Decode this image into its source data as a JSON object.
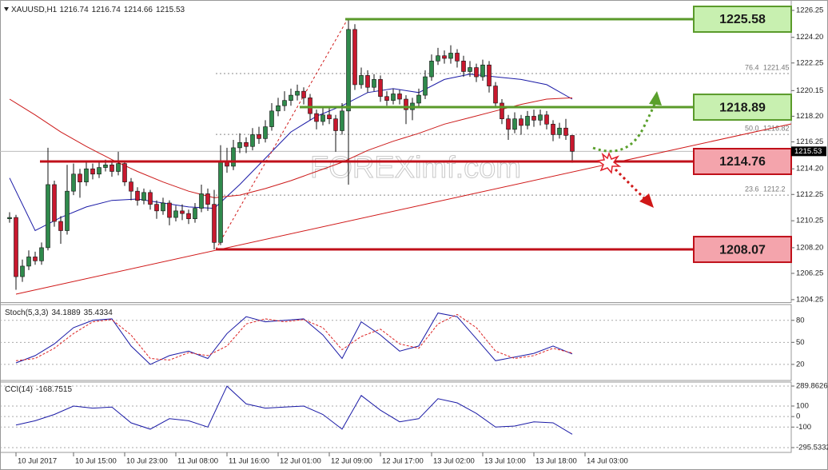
{
  "chart_data": [
    {
      "type": "candlestick",
      "title": "XAUUSD,H1",
      "header_values": [
        1216.74,
        1216.74,
        1214.66,
        1215.53
      ],
      "xlim": [
        -1.5,
        122.25
      ],
      "ylim": [
        1204.06,
        1227.04
      ],
      "yticks": [
        1226.25,
        {
          "value": 1224.2,
          "label": "1224.20"
        },
        1222.25,
        1220.15,
        {
          "value": 1218.2,
          "label": "1218.20"
        },
        1216.25,
        {
          "value": 1214.2,
          "label": "1214.20"
        },
        1212.25,
        1210.25,
        {
          "value": 1208.2,
          "label": "1208.20"
        },
        1206.25,
        1204.25
      ],
      "xticks": [
        {
          "value": 1,
          "label": "10 Jul 2017"
        },
        {
          "value": 10,
          "label": "10 Jul 15:00"
        },
        {
          "value": 18,
          "label": "10 Jul 23:00"
        },
        {
          "value": 26,
          "label": "11 Jul 08:00"
        },
        {
          "value": 34,
          "label": "11 Jul 16:00"
        },
        {
          "value": 42,
          "label": "12 Jul 01:00"
        },
        {
          "value": 50,
          "label": "12 Jul 09:00"
        },
        {
          "value": 58,
          "label": "12 Jul 17:00"
        },
        {
          "value": 66,
          "label": "13 Jul 02:00"
        },
        {
          "value": 74,
          "label": "13 Jul 10:00"
        },
        {
          "value": 82,
          "label": "13 Jul 18:00"
        },
        {
          "value": 90,
          "label": "14 Jul 03:00"
        }
      ],
      "colors": {
        "up": "#2f8a4c",
        "down": "#c8182e",
        "wick": "#111111"
      },
      "ohlc": [
        [
          1210.4,
          1210.9,
          1210.1,
          1210.5
        ],
        [
          1210.5,
          1210.7,
          1205.0,
          1206.0
        ],
        [
          1206.0,
          1207.3,
          1205.6,
          1206.8
        ],
        [
          1206.8,
          1208.0,
          1206.5,
          1207.5
        ],
        [
          1207.5,
          1207.9,
          1206.9,
          1207.2
        ],
        [
          1207.2,
          1208.6,
          1206.9,
          1208.2
        ],
        [
          1208.2,
          1215.8,
          1208.0,
          1213.0
        ],
        [
          1213.0,
          1213.3,
          1209.8,
          1210.2
        ],
        [
          1210.2,
          1210.6,
          1208.5,
          1209.5
        ],
        [
          1209.5,
          1214.5,
          1209.2,
          1212.5
        ],
        [
          1212.5,
          1214.6,
          1212.2,
          1213.8
        ],
        [
          1213.8,
          1214.2,
          1212.0,
          1213.2
        ],
        [
          1213.2,
          1214.8,
          1212.9,
          1214.2
        ],
        [
          1214.2,
          1214.6,
          1213.4,
          1213.8
        ],
        [
          1213.8,
          1214.7,
          1213.5,
          1214.3
        ],
        [
          1214.3,
          1214.9,
          1214.0,
          1214.5
        ],
        [
          1214.5,
          1214.8,
          1213.6,
          1214.0
        ],
        [
          1214.0,
          1215.5,
          1213.7,
          1214.6
        ],
        [
          1214.6,
          1214.8,
          1212.9,
          1213.2
        ],
        [
          1213.2,
          1213.5,
          1211.8,
          1212.5
        ],
        [
          1212.5,
          1212.8,
          1211.4,
          1211.8
        ],
        [
          1211.8,
          1212.7,
          1211.5,
          1212.4
        ],
        [
          1212.4,
          1212.6,
          1211.1,
          1211.5
        ],
        [
          1211.5,
          1211.8,
          1210.4,
          1211.0
        ],
        [
          1211.0,
          1212.0,
          1210.7,
          1211.6
        ],
        [
          1211.6,
          1211.8,
          1209.9,
          1210.5
        ],
        [
          1210.5,
          1211.4,
          1210.2,
          1211.0
        ],
        [
          1211.0,
          1211.5,
          1210.3,
          1210.8
        ],
        [
          1210.8,
          1211.1,
          1210.0,
          1210.4
        ],
        [
          1210.4,
          1211.6,
          1210.1,
          1211.2
        ],
        [
          1211.2,
          1213.0,
          1210.9,
          1212.3
        ],
        [
          1212.3,
          1212.7,
          1211.0,
          1211.5
        ],
        [
          1211.5,
          1212.6,
          1208.07,
          1208.6
        ],
        [
          1208.6,
          1216.0,
          1208.4,
          1214.8
        ],
        [
          1214.8,
          1215.8,
          1213.9,
          1214.4
        ],
        [
          1214.4,
          1216.4,
          1214.1,
          1215.8
        ],
        [
          1215.8,
          1216.9,
          1215.4,
          1216.2
        ],
        [
          1216.2,
          1216.6,
          1215.4,
          1215.9
        ],
        [
          1215.9,
          1217.3,
          1215.6,
          1216.8
        ],
        [
          1216.8,
          1217.4,
          1216.1,
          1216.5
        ],
        [
          1216.5,
          1217.9,
          1216.2,
          1217.4
        ],
        [
          1217.4,
          1219.2,
          1217.1,
          1218.6
        ],
        [
          1218.6,
          1219.6,
          1218.2,
          1219.0
        ],
        [
          1219.0,
          1220.1,
          1218.6,
          1219.4
        ],
        [
          1219.4,
          1220.3,
          1219.0,
          1219.8
        ],
        [
          1219.8,
          1220.6,
          1219.4,
          1220.1
        ],
        [
          1220.1,
          1220.4,
          1219.1,
          1219.6
        ],
        [
          1219.6,
          1219.9,
          1217.9,
          1218.4
        ],
        [
          1218.4,
          1218.7,
          1217.2,
          1217.8
        ],
        [
          1217.8,
          1218.8,
          1217.5,
          1218.3
        ],
        [
          1218.3,
          1218.9,
          1217.6,
          1218.0
        ],
        [
          1218.0,
          1218.3,
          1215.5,
          1217.1
        ],
        [
          1217.1,
          1219.2,
          1216.8,
          1218.6
        ],
        [
          1218.6,
          1225.58,
          1213.0,
          1224.8
        ],
        [
          1224.8,
          1225.2,
          1220.2,
          1220.6
        ],
        [
          1220.6,
          1221.9,
          1220.3,
          1221.3
        ],
        [
          1221.3,
          1221.7,
          1220.0,
          1220.4
        ],
        [
          1220.4,
          1221.4,
          1220.1,
          1221.0
        ],
        [
          1221.0,
          1221.3,
          1219.3,
          1219.7
        ],
        [
          1219.7,
          1220.1,
          1219.0,
          1219.4
        ],
        [
          1219.4,
          1220.3,
          1219.1,
          1219.9
        ],
        [
          1219.9,
          1220.2,
          1219.1,
          1219.5
        ],
        [
          1219.5,
          1219.8,
          1217.6,
          1218.7
        ],
        [
          1218.7,
          1219.6,
          1217.9,
          1219.2
        ],
        [
          1219.2,
          1220.3,
          1218.9,
          1219.8
        ],
        [
          1219.8,
          1221.7,
          1219.5,
          1221.2
        ],
        [
          1221.2,
          1222.9,
          1220.9,
          1222.4
        ],
        [
          1222.4,
          1223.4,
          1222.1,
          1222.8
        ],
        [
          1222.8,
          1223.2,
          1222.2,
          1222.6
        ],
        [
          1222.6,
          1223.6,
          1222.2,
          1223.0
        ],
        [
          1223.0,
          1223.3,
          1221.9,
          1222.4
        ],
        [
          1222.4,
          1222.8,
          1221.2,
          1221.6
        ],
        [
          1221.6,
          1222.4,
          1221.2,
          1221.9
        ],
        [
          1221.9,
          1222.2,
          1220.8,
          1221.2
        ],
        [
          1221.2,
          1222.5,
          1220.9,
          1222.1
        ],
        [
          1222.1,
          1222.4,
          1220.0,
          1220.5
        ],
        [
          1220.5,
          1220.8,
          1218.8,
          1219.2
        ],
        [
          1219.2,
          1219.5,
          1217.6,
          1218.0
        ],
        [
          1218.0,
          1218.3,
          1216.4,
          1217.2
        ],
        [
          1217.2,
          1218.5,
          1216.9,
          1218.0
        ],
        [
          1218.0,
          1218.3,
          1216.8,
          1217.5
        ],
        [
          1217.5,
          1218.6,
          1217.2,
          1218.2
        ],
        [
          1218.2,
          1218.7,
          1217.4,
          1217.9
        ],
        [
          1217.9,
          1218.7,
          1217.5,
          1218.3
        ],
        [
          1218.3,
          1218.6,
          1217.2,
          1217.6
        ],
        [
          1217.6,
          1217.9,
          1216.3,
          1216.8
        ],
        [
          1216.8,
          1217.7,
          1216.5,
          1217.3
        ],
        [
          1217.3,
          1218.0,
          1216.4,
          1216.74
        ],
        [
          1216.74,
          1216.74,
          1214.66,
          1215.53
        ]
      ],
      "moving_averages": [
        {
          "color": "#1a1aa6",
          "x": [
            0,
            4,
            8,
            12,
            16,
            20,
            24,
            28,
            32,
            36,
            40,
            44,
            48,
            52,
            56,
            60,
            64,
            68,
            72,
            76,
            80,
            84,
            88
          ],
          "values": [
            1213.5,
            1209.5,
            1210.5,
            1211.3,
            1211.8,
            1211.9,
            1211.6,
            1211.3,
            1211.2,
            1213.0,
            1215.0,
            1217.0,
            1218.2,
            1219.0,
            1220.0,
            1220.3,
            1220.0,
            1221.0,
            1221.4,
            1221.2,
            1221.0,
            1220.6,
            1219.5
          ]
        },
        {
          "color": "#cc1a1a",
          "x": [
            0,
            4,
            8,
            12,
            16,
            20,
            24,
            28,
            32,
            36,
            40,
            44,
            48,
            52,
            56,
            60,
            64,
            68,
            72,
            76,
            80,
            84,
            88
          ],
          "values": [
            1219.5,
            1218.3,
            1217.0,
            1215.9,
            1214.9,
            1214.0,
            1213.2,
            1212.5,
            1212.0,
            1212.2,
            1212.7,
            1213.3,
            1214.0,
            1214.7,
            1215.6,
            1216.3,
            1216.9,
            1217.6,
            1218.1,
            1218.6,
            1219.1,
            1219.5,
            1219.6
          ]
        }
      ],
      "levels": [
        {
          "value": 1225.58,
          "color": "#5a9a2a",
          "fill": "#c8f0b0"
        },
        {
          "value": 1218.89,
          "color": "#5a9a2a",
          "fill": "#c8f0b0"
        },
        {
          "value": 1214.76,
          "color": "#c0101a",
          "fill": "#f4a4ac"
        },
        {
          "value": 1208.07,
          "color": "#c0101a",
          "fill": "#f4a4ac"
        }
      ],
      "fibonacci": [
        {
          "label": "76.4",
          "value": 1221.45
        },
        {
          "label": "50.0",
          "value": 1216.82
        },
        {
          "label": "23.6",
          "value": 1212.2
        }
      ],
      "current_price": 1215.53,
      "watermark": "FOREXimf.com"
    },
    {
      "type": "line",
      "title": "Stoch(5,3,3)",
      "header_values": [
        34.1889,
        35.4334
      ],
      "xlim": [
        -1.5,
        122.25
      ],
      "ylim": [
        -1.9,
        101.5
      ],
      "yticks": [
        80,
        50,
        20
      ],
      "x": [
        1,
        4,
        7,
        10,
        13,
        16,
        19,
        22,
        25,
        28,
        31,
        34,
        37,
        40,
        43,
        46,
        49,
        52,
        55,
        58,
        61,
        64,
        67,
        70,
        73,
        76,
        79,
        82,
        85,
        88
      ],
      "series": [
        {
          "color": "#1a1aa6",
          "dash": false,
          "values": [
            22,
            32,
            48,
            70,
            80,
            82,
            45,
            20,
            32,
            38,
            28,
            62,
            85,
            78,
            80,
            82,
            60,
            28,
            78,
            60,
            38,
            45,
            90,
            85,
            55,
            25,
            30,
            35,
            45,
            34.1889
          ]
        },
        {
          "color": "#dd2222",
          "dash": true,
          "values": [
            25,
            28,
            42,
            62,
            78,
            81,
            60,
            28,
            26,
            36,
            32,
            45,
            75,
            82,
            78,
            81,
            70,
            40,
            58,
            68,
            48,
            42,
            75,
            88,
            70,
            38,
            28,
            32,
            42,
            35.4334
          ]
        }
      ]
    },
    {
      "type": "line",
      "title": "CCI(14)",
      "header_values": [
        -168.7515
      ],
      "xlim": [
        -1.5,
        122.25
      ],
      "ylim": [
        -341.1,
        327.9
      ],
      "yticks": [
        289.8626,
        100,
        0,
        -100,
        -295.5332
      ],
      "x": [
        1,
        4,
        7,
        10,
        13,
        16,
        19,
        22,
        25,
        28,
        31,
        34,
        37,
        40,
        43,
        46,
        49,
        52,
        55,
        58,
        61,
        64,
        67,
        70,
        73,
        76,
        79,
        82,
        85,
        88
      ],
      "series": [
        {
          "color": "#1a1aa6",
          "dash": false,
          "values": [
            -80,
            -40,
            20,
            100,
            80,
            90,
            -60,
            -120,
            -20,
            -40,
            -100,
            289,
            120,
            80,
            90,
            100,
            20,
            -120,
            200,
            60,
            -50,
            -20,
            170,
            130,
            30,
            -100,
            -90,
            -50,
            -60,
            -168.7515
          ]
        }
      ]
    }
  ]
}
